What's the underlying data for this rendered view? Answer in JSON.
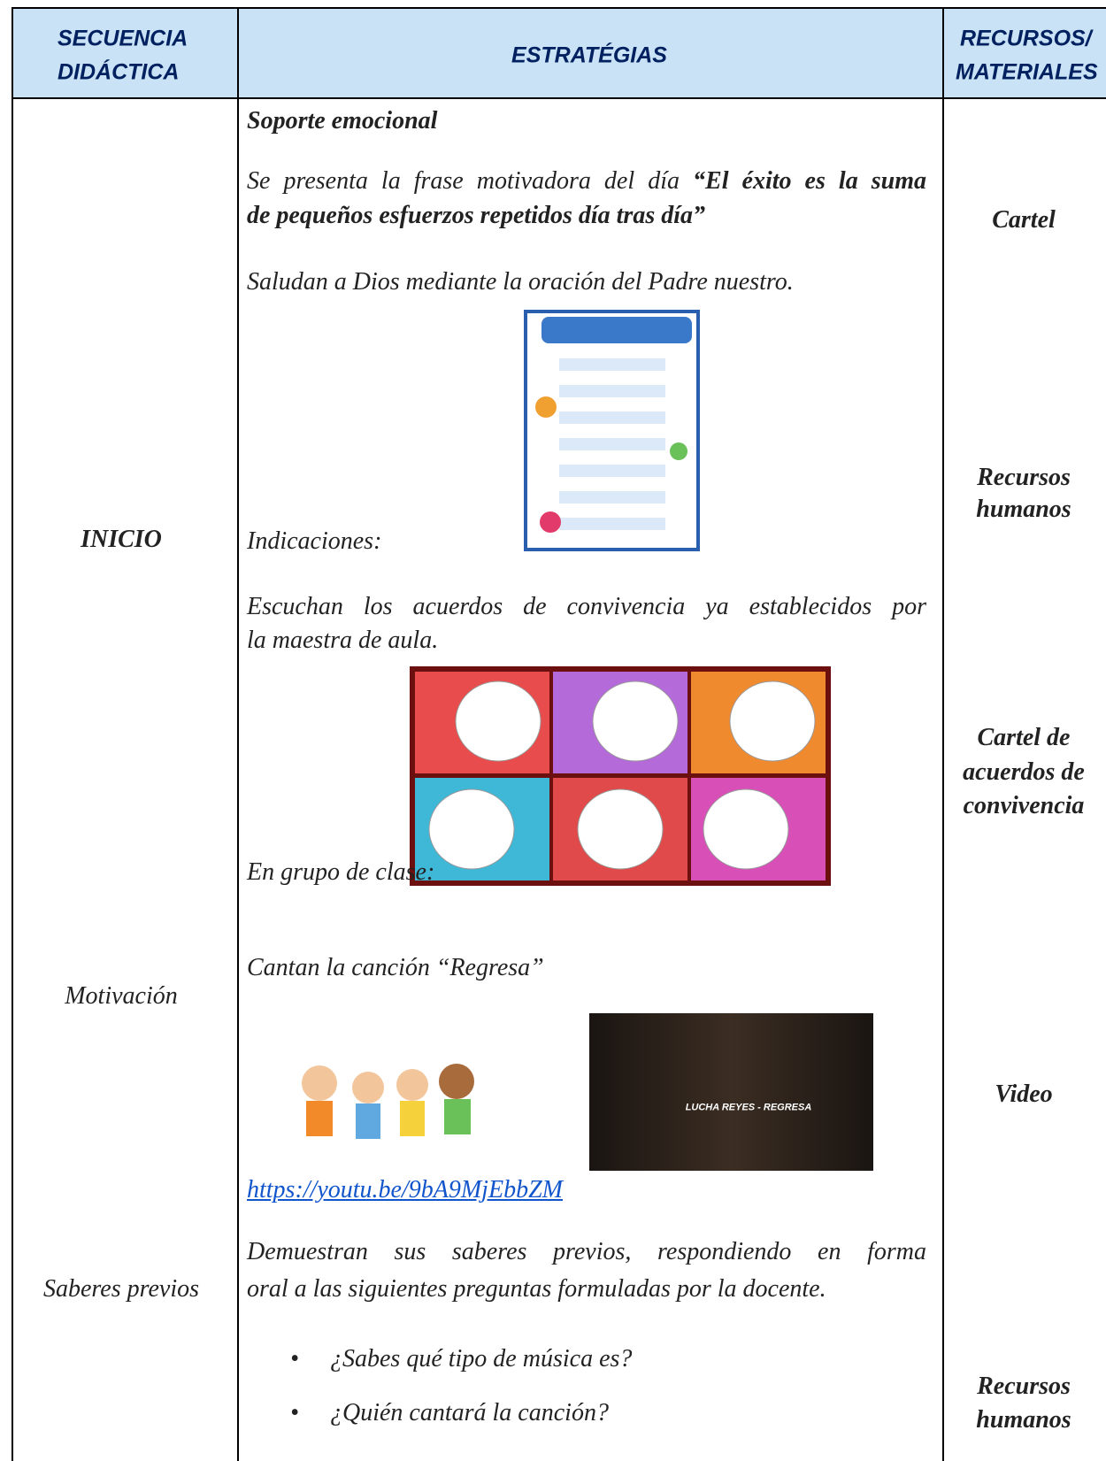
{
  "header": {
    "col1": [
      "SECUENCIA",
      "DIDÁCTICA"
    ],
    "col2": "ESTRATÉGIAS",
    "col3": [
      "RECURSOS/",
      "MATERIALES"
    ]
  },
  "left": {
    "inicio": "INICIO",
    "motivacion": "Motivación",
    "saberes": "Saberes previos"
  },
  "middle": {
    "soporte": "Soporte emocional",
    "frase_intro": "Se presenta la frase motivadora del día",
    "frase_quote1": "“El éxito es la suma",
    "frase_quote2": "de pequeños esfuerzos repetidos día tras día”",
    "saludan": "Saludan a Dios mediante la oración del Padre nuestro.",
    "indicaciones": "Indicaciones:",
    "escuchan1": "Escuchan los acuerdos de convivencia ya establecidos por",
    "escuchan2": "la maestra de aula.",
    "grupo": "En grupo de clase:",
    "cantan": "Cantan la canción “Regresa”",
    "video_title": "LUCHA REYES - REGRESA",
    "link": "https://youtu.be/9bA9MjEbbZM",
    "demuestran1": "Demuestran sus saberes previos, respondiendo en forma",
    "demuestran2": "oral a las siguientes preguntas formuladas por la docente.",
    "bullets": [
      "¿Sabes qué tipo de música es?",
      "¿Quién cantará la canción?"
    ]
  },
  "right": {
    "cartel": "Cartel",
    "recursos1": [
      "Recursos",
      "humanos"
    ],
    "cartel_acuerdos": [
      "Cartel de",
      "acuerdos de",
      "convivencia"
    ],
    "video": "Video",
    "recursos2": [
      "Recursos",
      "humanos"
    ]
  }
}
